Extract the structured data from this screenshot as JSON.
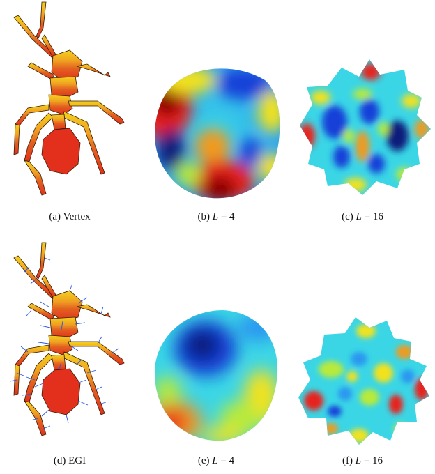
{
  "figure": {
    "captions": {
      "a": {
        "label": "(a)",
        "text": "Vertex"
      },
      "b": {
        "label": "(b)",
        "var": "L",
        "eq": "=",
        "val": "4"
      },
      "c": {
        "label": "(c)",
        "var": "L",
        "eq": "=",
        "val": "16"
      },
      "d": {
        "label": "(d)",
        "text": "EGI"
      },
      "e": {
        "label": "(e)",
        "var": "L",
        "eq": "=",
        "val": "4"
      },
      "f": {
        "label": "(f)",
        "var": "L",
        "eq": "=",
        "val": "16"
      }
    },
    "colormap": {
      "dark_red": "#8b0000",
      "red": "#e8241c",
      "orange": "#f29a1e",
      "yellow": "#f2e21e",
      "green_yellow": "#b8ea3a",
      "cyan": "#3ad6e6",
      "light_blue": "#2a96f0",
      "blue": "#1440d8",
      "dark_blue": "#0a1a7a"
    },
    "egi_arrow_color": "#2a5ae6"
  }
}
